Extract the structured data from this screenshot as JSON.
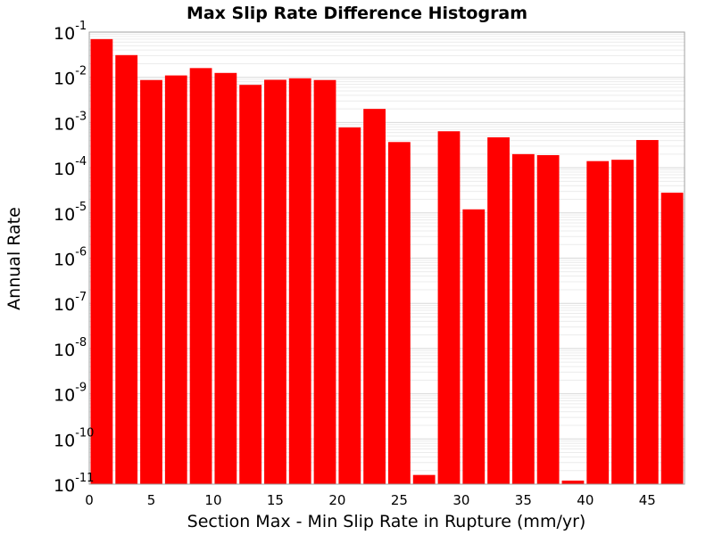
{
  "chart_data": {
    "type": "bar",
    "title": "Max Slip Rate Difference Histogram",
    "xlabel": "Section Max - Min Slip Rate in Rupture (mm/yr)",
    "ylabel": "Annual Rate",
    "yscale": "log",
    "xlim": [
      0,
      48
    ],
    "ylim": [
      1e-11,
      0.1
    ],
    "bin_width": 2,
    "grid": true,
    "bar_color": "#ff0000",
    "x_ticks": [
      "0",
      "5",
      "10",
      "15",
      "20",
      "25",
      "30",
      "35",
      "40",
      "45"
    ],
    "y_ticks": [
      {
        "base": "10",
        "exp": "-1"
      },
      {
        "base": "10",
        "exp": "-2"
      },
      {
        "base": "10",
        "exp": "-3"
      },
      {
        "base": "10",
        "exp": "-4"
      },
      {
        "base": "10",
        "exp": "-5"
      },
      {
        "base": "10",
        "exp": "-6"
      },
      {
        "base": "10",
        "exp": "-7"
      },
      {
        "base": "10",
        "exp": "-8"
      },
      {
        "base": "10",
        "exp": "-9"
      },
      {
        "base": "10",
        "exp": "-10"
      },
      {
        "base": "10",
        "exp": "-11"
      }
    ],
    "x": [
      1,
      3,
      5,
      7,
      9,
      11,
      13,
      15,
      17,
      19,
      21,
      23,
      25,
      27,
      29,
      31,
      33,
      35,
      37,
      39,
      41,
      43,
      45,
      47
    ],
    "values": [
      0.07,
      0.031,
      0.0087,
      0.011,
      0.016,
      0.0125,
      0.0068,
      0.0088,
      0.0095,
      0.0087,
      0.00078,
      0.002,
      0.00037,
      1.6e-11,
      0.00064,
      1.2e-05,
      0.00047,
      0.0002,
      0.00019,
      1.2e-11,
      0.00014,
      0.00015,
      0.00041,
      2.8e-05
    ]
  }
}
